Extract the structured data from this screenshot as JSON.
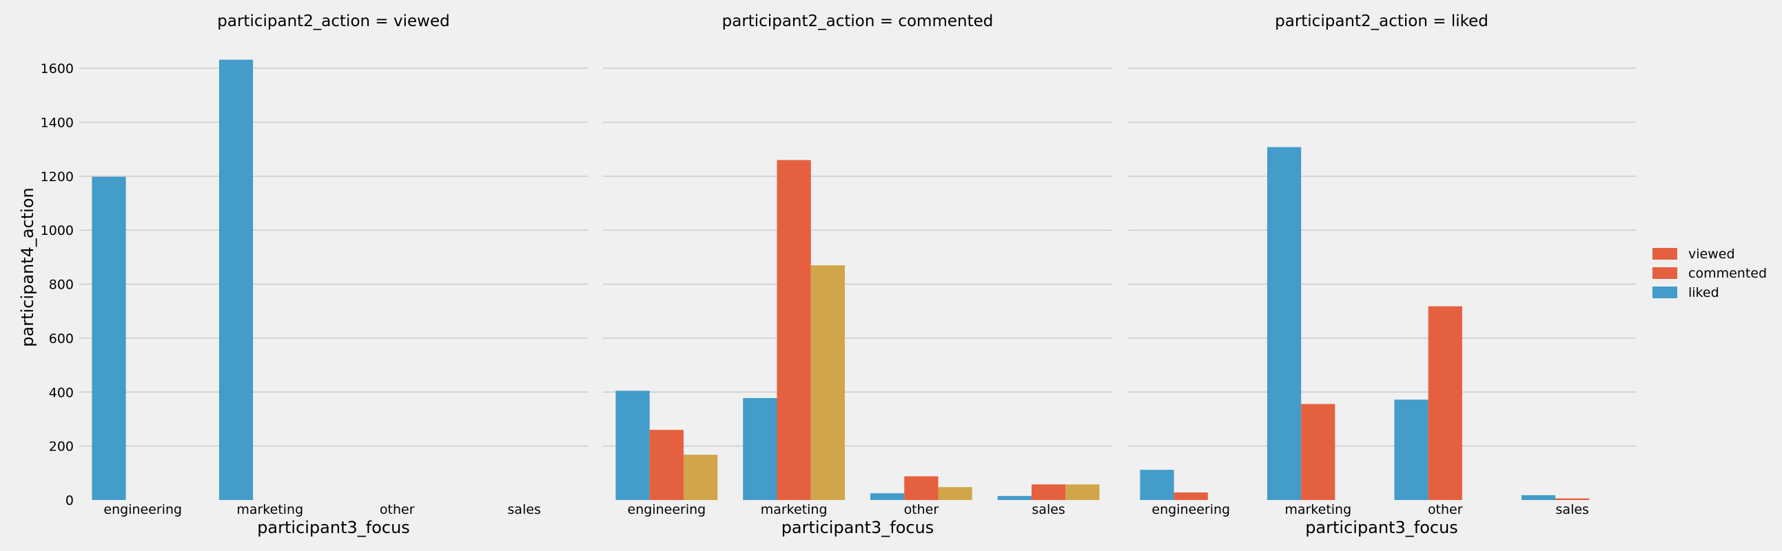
{
  "chart_data": {
    "type": "bar",
    "ylabel": "participant4_action",
    "xlabel": "participant3_focus",
    "categories": [
      "engineering",
      "marketing",
      "other",
      "sales"
    ],
    "ylim": [
      0,
      1700
    ],
    "yticks": [
      0,
      200,
      400,
      600,
      800,
      1000,
      1200,
      1400,
      1600
    ],
    "grid": true,
    "legend_position": "right",
    "legend": [
      {
        "label": "viewed",
        "color": "#e5603f"
      },
      {
        "label": "commented",
        "color": "#e5603f"
      },
      {
        "label": "liked",
        "color": "#439cc9"
      }
    ],
    "facets": [
      {
        "title": "participant2_action = viewed",
        "series": [
          {
            "color": "#439cc9",
            "values": [
              1198,
              1632,
              0,
              0
            ]
          },
          {
            "color": "#e5603f",
            "values": [
              0,
              0,
              0,
              0
            ]
          },
          {
            "color": "#d1a64b",
            "values": [
              0,
              0,
              0,
              0
            ]
          }
        ]
      },
      {
        "title": "participant2_action = commented",
        "series": [
          {
            "color": "#439cc9",
            "values": [
              405,
              378,
              25,
              15
            ]
          },
          {
            "color": "#e5603f",
            "values": [
              260,
              1260,
              88,
              58
            ]
          },
          {
            "color": "#d1a64b",
            "values": [
              168,
              870,
              48,
              58
            ]
          }
        ]
      },
      {
        "title": "participant2_action = liked",
        "series": [
          {
            "color": "#439cc9",
            "values": [
              112,
              1308,
              372,
              18
            ]
          },
          {
            "color": "#e5603f",
            "values": [
              28,
              356,
              718,
              6
            ]
          },
          {
            "color": "#d1a64b",
            "values": [
              0,
              0,
              0,
              0
            ]
          }
        ]
      }
    ]
  }
}
